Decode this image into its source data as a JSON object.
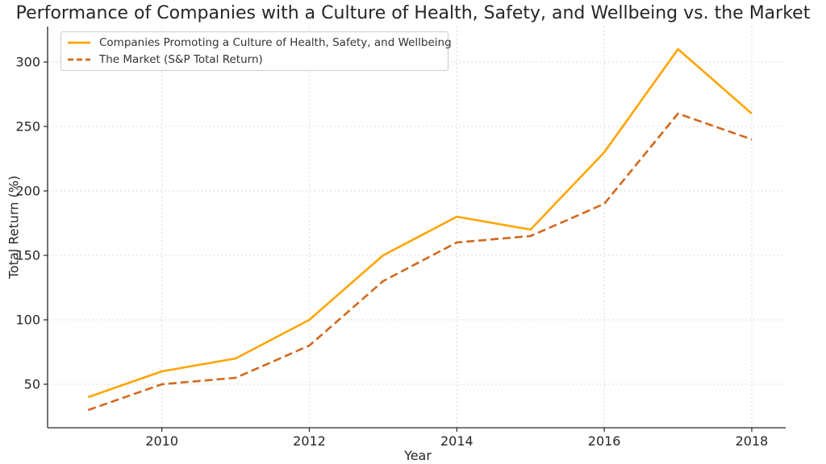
{
  "colors": {
    "background": "#ffffff",
    "grid": "#d9d9d9",
    "spine": "#262626",
    "tick_text": "#262626",
    "title_text": "#262626",
    "legend_border": "#cccccc",
    "legend_text": "#333333"
  },
  "chart_data": {
    "type": "line",
    "title": "Performance of Companies with a Culture of Health, Safety, and Wellbeing vs. the Market",
    "xlabel": "Year",
    "ylabel": "Total Return (%)",
    "x": [
      2009,
      2010,
      2011,
      2012,
      2013,
      2014,
      2015,
      2016,
      2017,
      2018
    ],
    "series": [
      {
        "name": "Companies Promoting a Culture of Health, Safety, and Wellbeing",
        "color": "#FFA500",
        "line_style": "solid",
        "values": [
          40,
          60,
          70,
          100,
          150,
          180,
          170,
          230,
          310,
          260
        ]
      },
      {
        "name": "The Market (S&P Total Return)",
        "color": "#D2691E",
        "line_style": "dashed",
        "values": [
          30,
          50,
          55,
          80,
          130,
          160,
          165,
          190,
          260,
          240
        ]
      }
    ],
    "xticks": [
      2010,
      2012,
      2014,
      2016,
      2018
    ],
    "yticks": [
      50,
      100,
      150,
      200,
      250,
      300
    ],
    "xlim": [
      2008.45,
      2018.46
    ],
    "ylim": [
      16.25,
      327.5
    ],
    "grid": true,
    "legend_position": "upper-left"
  }
}
